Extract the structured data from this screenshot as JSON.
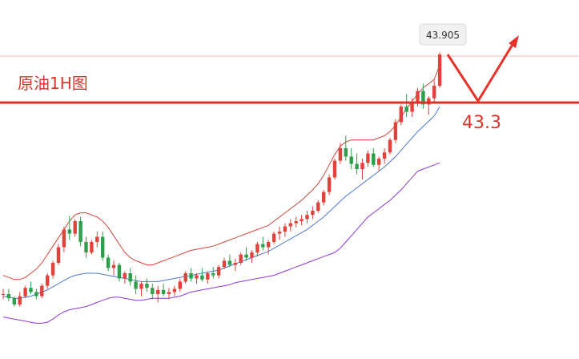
{
  "chart_data": {
    "type": "candlestick",
    "title": "原油1H图",
    "price_tag": "43.905",
    "target_label": "43.3",
    "support_level": 43.3,
    "colors": {
      "up": "#e0433b",
      "down": "#2e9e4a",
      "support_line": "#d9342b",
      "arrow": "#e8332c",
      "title": "#d9342b",
      "upper_band": "#d2463c",
      "middle_band": "#4a78d2",
      "lower_band": "#8a3ad6",
      "ref_line": "#f2b8b0"
    },
    "candles": [
      [
        41.6,
        41.65,
        41.55,
        41.6
      ],
      [
        41.6,
        41.65,
        41.53,
        41.56
      ],
      [
        41.56,
        41.58,
        41.48,
        41.5
      ],
      [
        41.5,
        41.62,
        41.48,
        41.58
      ],
      [
        41.58,
        41.68,
        41.56,
        41.66
      ],
      [
        41.66,
        41.72,
        41.6,
        41.62
      ],
      [
        41.62,
        41.65,
        41.55,
        41.58
      ],
      [
        41.58,
        41.7,
        41.56,
        41.68
      ],
      [
        41.68,
        41.8,
        41.65,
        41.78
      ],
      [
        41.78,
        41.92,
        41.75,
        41.9
      ],
      [
        41.9,
        42.08,
        41.88,
        42.05
      ],
      [
        42.05,
        42.25,
        42.0,
        42.22
      ],
      [
        42.22,
        42.35,
        42.12,
        42.18
      ],
      [
        42.18,
        42.32,
        42.15,
        42.3
      ],
      [
        42.3,
        42.34,
        42.06,
        42.1
      ],
      [
        42.1,
        42.15,
        41.95,
        42.0
      ],
      [
        42.0,
        42.12,
        41.98,
        42.1
      ],
      [
        42.1,
        42.2,
        42.05,
        42.15
      ],
      [
        42.15,
        42.2,
        41.92,
        41.95
      ],
      [
        41.95,
        41.98,
        41.82,
        41.85
      ],
      [
        41.85,
        41.92,
        41.78,
        41.88
      ],
      [
        41.88,
        41.9,
        41.72,
        41.75
      ],
      [
        41.75,
        41.82,
        41.7,
        41.8
      ],
      [
        41.8,
        41.85,
        41.68,
        41.72
      ],
      [
        41.72,
        41.78,
        41.6,
        41.65
      ],
      [
        41.65,
        41.72,
        41.58,
        41.7
      ],
      [
        41.7,
        41.75,
        41.62,
        41.66
      ],
      [
        41.66,
        41.7,
        41.55,
        41.6
      ],
      [
        41.6,
        41.68,
        41.52,
        41.64
      ],
      [
        41.64,
        41.7,
        41.58,
        41.6
      ],
      [
        41.6,
        41.66,
        41.55,
        41.62
      ],
      [
        41.62,
        41.68,
        41.58,
        41.65
      ],
      [
        41.65,
        41.75,
        41.62,
        41.72
      ],
      [
        41.72,
        41.82,
        41.7,
        41.8
      ],
      [
        41.8,
        41.85,
        41.72,
        41.75
      ],
      [
        41.75,
        41.8,
        41.7,
        41.78
      ],
      [
        41.78,
        41.85,
        41.72,
        41.74
      ],
      [
        41.74,
        41.82,
        41.7,
        41.8
      ],
      [
        41.8,
        41.86,
        41.75,
        41.78
      ],
      [
        41.78,
        41.88,
        41.75,
        41.86
      ],
      [
        41.86,
        41.95,
        41.84,
        41.92
      ],
      [
        41.92,
        41.98,
        41.86,
        41.88
      ],
      [
        41.88,
        41.94,
        41.82,
        41.9
      ],
      [
        41.9,
        42.0,
        41.88,
        41.98
      ],
      [
        41.98,
        42.05,
        41.92,
        41.95
      ],
      [
        41.95,
        42.02,
        41.9,
        42.0
      ],
      [
        42.0,
        42.1,
        41.96,
        42.08
      ],
      [
        42.08,
        42.15,
        42.02,
        42.05
      ],
      [
        42.05,
        42.12,
        41.98,
        42.1
      ],
      [
        42.1,
        42.2,
        42.08,
        42.18
      ],
      [
        42.18,
        42.25,
        42.12,
        42.2
      ],
      [
        42.2,
        42.28,
        42.15,
        42.25
      ],
      [
        42.25,
        42.32,
        42.2,
        42.28
      ],
      [
        42.28,
        42.34,
        42.24,
        42.3
      ],
      [
        42.3,
        42.36,
        42.26,
        42.32
      ],
      [
        42.32,
        42.4,
        42.28,
        42.36
      ],
      [
        42.36,
        42.44,
        42.32,
        42.4
      ],
      [
        42.4,
        42.5,
        42.38,
        42.48
      ],
      [
        42.48,
        42.6,
        42.45,
        42.58
      ],
      [
        42.58,
        42.75,
        42.55,
        42.72
      ],
      [
        42.72,
        42.9,
        42.7,
        42.88
      ],
      [
        42.88,
        43.05,
        42.85,
        43.0
      ],
      [
        43.0,
        43.12,
        42.88,
        42.92
      ],
      [
        42.92,
        43.0,
        42.8,
        42.85
      ],
      [
        42.85,
        42.95,
        42.75,
        42.8
      ],
      [
        42.8,
        42.9,
        42.7,
        42.86
      ],
      [
        42.86,
        42.98,
        42.82,
        42.95
      ],
      [
        42.95,
        43.0,
        42.82,
        42.84
      ],
      [
        42.84,
        42.92,
        42.78,
        42.9
      ],
      [
        42.9,
        43.0,
        42.85,
        42.96
      ],
      [
        42.96,
        43.1,
        42.94,
        43.08
      ],
      [
        43.08,
        43.28,
        43.05,
        43.25
      ],
      [
        43.25,
        43.42,
        43.22,
        43.4
      ],
      [
        43.4,
        43.52,
        43.3,
        43.35
      ],
      [
        43.35,
        43.48,
        43.3,
        43.45
      ],
      [
        43.45,
        43.58,
        43.4,
        43.55
      ],
      [
        43.55,
        43.62,
        43.38,
        43.42
      ],
      [
        43.42,
        43.5,
        43.32,
        43.48
      ],
      [
        43.48,
        43.65,
        43.45,
        43.6
      ],
      [
        43.6,
        43.92,
        43.58,
        43.9
      ]
    ],
    "upper_band": [
      41.78,
      41.76,
      41.74,
      41.74,
      41.76,
      41.8,
      41.84,
      41.9,
      41.98,
      42.06,
      42.14,
      42.22,
      42.3,
      42.36,
      42.38,
      42.38,
      42.36,
      42.34,
      42.3,
      42.24,
      42.16,
      42.08,
      42.0,
      41.95,
      41.92,
      41.9,
      41.88,
      41.88,
      41.9,
      41.92,
      41.94,
      41.96,
      41.98,
      42.0,
      42.02,
      42.03,
      42.04,
      42.05,
      42.06,
      42.08,
      42.1,
      42.12,
      42.14,
      42.16,
      42.18,
      42.2,
      42.22,
      42.24,
      42.26,
      42.3,
      42.34,
      42.38,
      42.42,
      42.46,
      42.5,
      42.55,
      42.6,
      42.66,
      42.74,
      42.84,
      42.94,
      43.02,
      43.06,
      43.08,
      43.08,
      43.08,
      43.08,
      43.08,
      43.1,
      43.12,
      43.16,
      43.22,
      43.3,
      43.38,
      43.45,
      43.52,
      43.58,
      43.62,
      43.66,
      43.8
    ],
    "middle_band": [
      41.58,
      41.57,
      41.56,
      41.56,
      41.57,
      41.58,
      41.6,
      41.62,
      41.64,
      41.67,
      41.7,
      41.73,
      41.76,
      41.78,
      41.79,
      41.8,
      41.8,
      41.8,
      41.79,
      41.78,
      41.77,
      41.76,
      41.75,
      41.74,
      41.73,
      41.72,
      41.72,
      41.72,
      41.72,
      41.73,
      41.74,
      41.75,
      41.76,
      41.77,
      41.78,
      41.79,
      41.8,
      41.81,
      41.82,
      41.83,
      41.85,
      41.87,
      41.89,
      41.91,
      41.93,
      41.95,
      41.97,
      41.99,
      42.01,
      42.04,
      42.07,
      42.1,
      42.13,
      42.16,
      42.19,
      42.22,
      42.26,
      42.3,
      42.34,
      42.39,
      42.44,
      42.49,
      42.54,
      42.58,
      42.62,
      42.66,
      42.7,
      42.74,
      42.78,
      42.82,
      42.87,
      42.92,
      42.98,
      43.04,
      43.1,
      43.16,
      43.21,
      43.26,
      43.31,
      43.4
    ],
    "lower_band": [
      41.38,
      41.37,
      41.36,
      41.35,
      41.34,
      41.33,
      41.32,
      41.32,
      41.33,
      41.36,
      41.4,
      41.43,
      41.45,
      41.46,
      41.47,
      41.48,
      41.5,
      41.52,
      41.54,
      41.56,
      41.57,
      41.57,
      41.56,
      41.55,
      41.54,
      41.54,
      41.55,
      41.56,
      41.56,
      41.56,
      41.56,
      41.57,
      41.58,
      41.6,
      41.62,
      41.63,
      41.64,
      41.65,
      41.66,
      41.67,
      41.68,
      41.69,
      41.71,
      41.72,
      41.73,
      41.74,
      41.75,
      41.76,
      41.77,
      41.78,
      41.8,
      41.82,
      41.84,
      41.86,
      41.88,
      41.9,
      41.92,
      41.94,
      41.96,
      41.98,
      42.0,
      42.04,
      42.1,
      42.16,
      42.22,
      42.28,
      42.34,
      42.38,
      42.42,
      42.46,
      42.5,
      42.55,
      42.6,
      42.66,
      42.72,
      42.78,
      42.8,
      42.82,
      42.84,
      42.86
    ]
  }
}
